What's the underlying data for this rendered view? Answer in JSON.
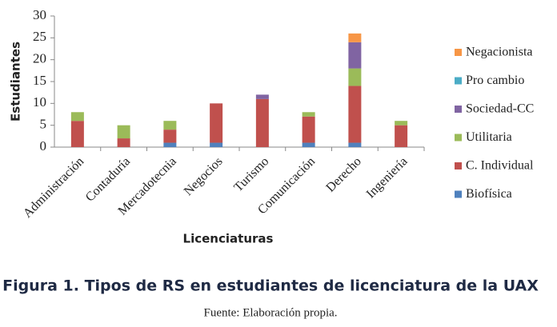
{
  "chart_data": {
    "type": "stacked_bar",
    "ylabel": "Estudiantes",
    "xlabel": "Licenciaturas",
    "caption": "Figura 1. Tipos de RS en estudiantes de licenciatura de la UAX",
    "source": "Fuente: Elaboración propia.",
    "categories": [
      "Administración",
      "Contaduría",
      "Mercadotecnia",
      "Negocios",
      "Turismo",
      "Comunicación",
      "Derecho",
      "Ingeniería"
    ],
    "series": [
      {
        "name": "Biofísica",
        "color": "#4f81bd",
        "values": [
          0,
          0,
          1,
          1,
          0,
          1,
          1,
          0
        ]
      },
      {
        "name": "C. Individual",
        "color": "#c0504d",
        "values": [
          6,
          2,
          3,
          9,
          11,
          6,
          13,
          5
        ]
      },
      {
        "name": "Utilitaria",
        "color": "#9bbb59",
        "values": [
          2,
          3,
          2,
          0,
          0,
          1,
          4,
          1
        ]
      },
      {
        "name": "Sociedad-CC",
        "color": "#8064a2",
        "values": [
          0,
          0,
          0,
          0,
          1,
          0,
          6,
          0
        ]
      },
      {
        "name": "Pro cambio",
        "color": "#4bacc6",
        "values": [
          0,
          0,
          0,
          0,
          0,
          0,
          0,
          0
        ]
      },
      {
        "name": "Negacionista",
        "color": "#f79646",
        "values": [
          0,
          0,
          0,
          0,
          0,
          0,
          2,
          0
        ]
      }
    ],
    "ylim": [
      0,
      30
    ],
    "yticks": [
      0,
      5,
      10,
      15,
      20,
      25,
      30
    ],
    "legend": "right"
  }
}
